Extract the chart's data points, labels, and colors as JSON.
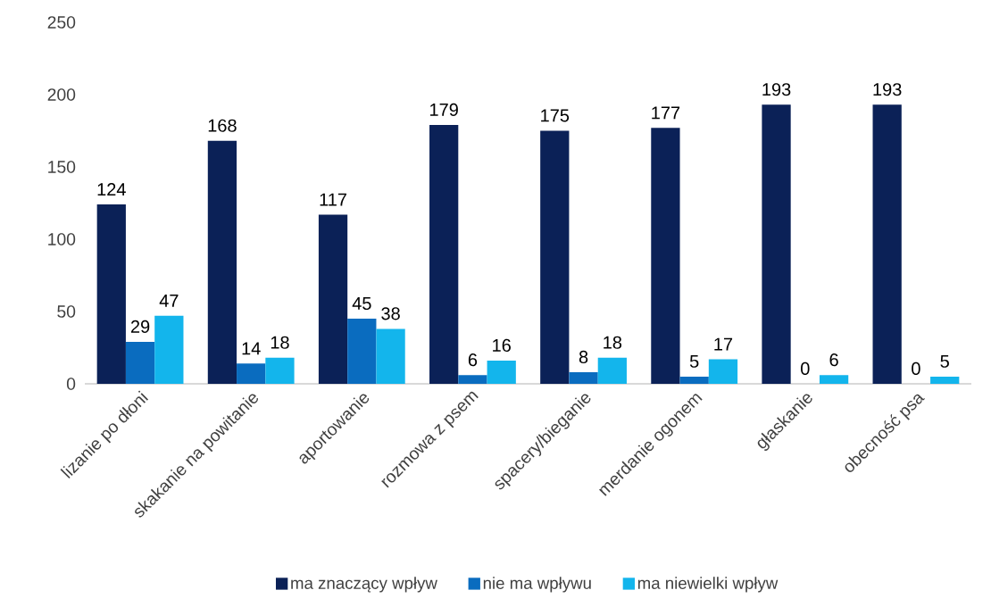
{
  "chart_data": {
    "type": "bar",
    "categories": [
      "lizanie po dłoni",
      "skakanie na powitanie",
      "aportowanie",
      "rozmowa z psem",
      "spacery/bieganie",
      "merdanie ogonem",
      "głaskanie",
      "obecność psa"
    ],
    "series": [
      {
        "name": "ma znaczący wpływ",
        "color": "#0b2157",
        "values": [
          124,
          168,
          117,
          179,
          175,
          177,
          193,
          193
        ]
      },
      {
        "name": "nie ma wpływu",
        "color": "#0a6cbf",
        "values": [
          29,
          14,
          45,
          6,
          8,
          5,
          0,
          0
        ]
      },
      {
        "name": "ma niewielki wpływ",
        "color": "#13b5ec",
        "values": [
          47,
          18,
          38,
          16,
          18,
          17,
          6,
          5
        ]
      }
    ],
    "ylim": [
      0,
      250
    ],
    "yticks": [
      0,
      50,
      100,
      150,
      200,
      250
    ],
    "data_labels": true,
    "legend": "bottom"
  }
}
